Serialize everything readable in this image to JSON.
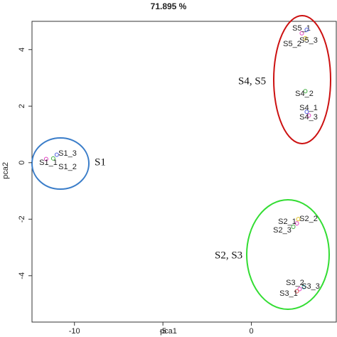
{
  "chart_data": {
    "type": "scatter",
    "title": "71.895 %",
    "x_label": "pca1",
    "y_label": "pca2",
    "xlim": [
      -12.4,
      4.8
    ],
    "ylim": [
      -5.64,
      5.0
    ],
    "xticks": [
      -10,
      -5,
      0
    ],
    "yticks": [
      -4,
      -2,
      0,
      2,
      4
    ],
    "points": [
      {
        "label": "S1_1",
        "x": -11.6,
        "y": 0.13,
        "color": "#e040c0"
      },
      {
        "label": "S1_3",
        "x": -11.0,
        "y": 0.28,
        "color": "#5060e0"
      },
      {
        "label": "S1_2",
        "x": -11.2,
        "y": 0.15,
        "color": "#40b040"
      },
      {
        "label": "S2_1",
        "x": 2.57,
        "y": -2.15,
        "color": "#e040c0"
      },
      {
        "label": "S2_2",
        "x": 2.65,
        "y": -2.0,
        "color": "#e0c020"
      },
      {
        "label": "S2_3",
        "x": 2.37,
        "y": -2.27,
        "color": "#40b040"
      },
      {
        "label": "S3_2",
        "x": 2.73,
        "y": -4.47,
        "color": "#e040c0"
      },
      {
        "label": "S3_3",
        "x": 2.97,
        "y": -4.4,
        "color": "#30b0c0"
      },
      {
        "label": "S3_1",
        "x": 2.57,
        "y": -4.55,
        "color": "#e05050"
      },
      {
        "label": "S4_2",
        "x": 3.05,
        "y": 2.53,
        "color": "#40b040"
      },
      {
        "label": "S4_1",
        "x": 3.13,
        "y": 1.8,
        "color": "#5060e0"
      },
      {
        "label": "S4_3",
        "x": 3.25,
        "y": 1.67,
        "color": "#e040c0"
      },
      {
        "label": "S5_1",
        "x": 2.85,
        "y": 4.58,
        "color": "#e040c0"
      },
      {
        "label": "S5_2",
        "x": 3.13,
        "y": 4.7,
        "color": "#5060e0"
      },
      {
        "label": "S5_3",
        "x": 3.05,
        "y": 4.4,
        "color": "#e0c020"
      }
    ],
    "annotations": [
      "S1",
      "S4, S5",
      "S2, S3"
    ]
  }
}
